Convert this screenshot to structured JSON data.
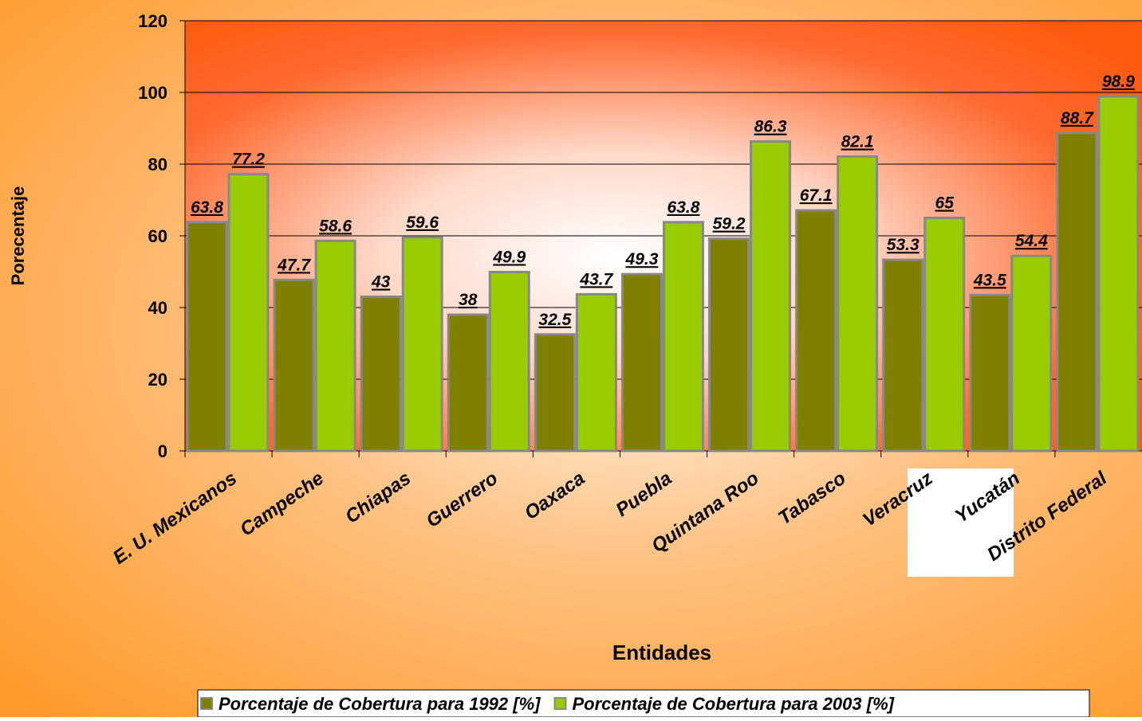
{
  "chart_data": {
    "type": "bar",
    "x_label": "Entidades",
    "y_label": "Porecentaje",
    "categories": [
      "E. U. Mexicanos",
      "Campeche",
      "Chiapas",
      "Guerrero",
      "Oaxaca",
      "Puebla",
      "Quintana Roo",
      "Tabasco",
      "Veracruz",
      "Yucatán",
      "Distrito Federal"
    ],
    "series": [
      {
        "name": "Porcentaje de Cobertura para 1992 [%]",
        "color": "#808000",
        "values": [
          63.8,
          47.7,
          43,
          38,
          32.5,
          49.3,
          59.2,
          67.1,
          53.3,
          43.5,
          88.7
        ]
      },
      {
        "name": "Porcentaje de Cobertura para 2003 [%]",
        "color": "#99cc00",
        "values": [
          77.2,
          58.6,
          59.6,
          49.9,
          43.7,
          63.8,
          86.3,
          82.1,
          65,
          54.4,
          98.9
        ]
      }
    ],
    "ylim": [
      0,
      120
    ],
    "yticks": [
      0,
      20,
      40,
      60,
      80,
      100,
      120
    ],
    "grid": true,
    "legend": "bottom"
  }
}
